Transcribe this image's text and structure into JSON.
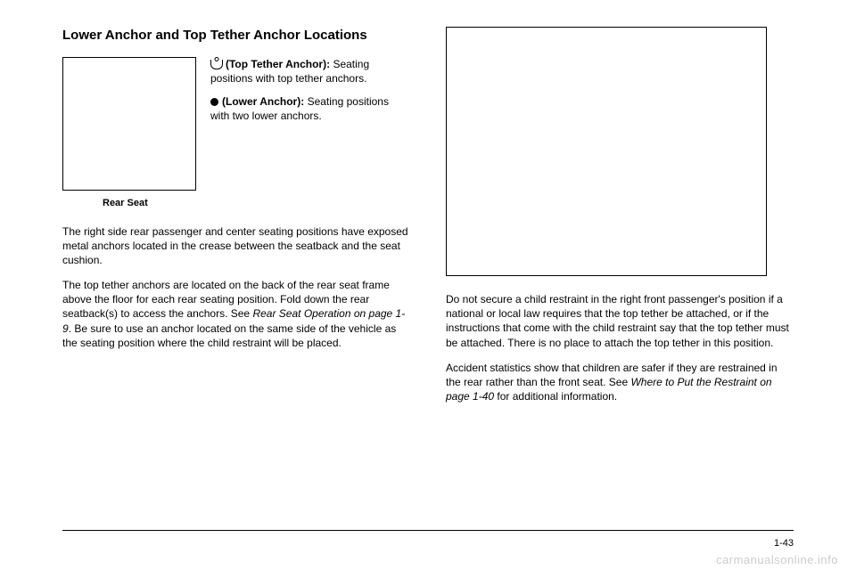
{
  "left": {
    "heading": "Lower Anchor and Top Tether Anchor Locations",
    "legend": {
      "top_tether_label": "(Top Tether Anchor):",
      "top_tether_desc": "Seating positions with top tether anchors.",
      "lower_anchor_label": "(Lower Anchor):",
      "lower_anchor_desc": "Seating positions with two lower anchors."
    },
    "caption": "Rear Seat",
    "para1": "The right side rear passenger and center seating positions have exposed metal anchors located in the crease between the seatback and the seat cushion.",
    "para2_a": "The top tether anchors are located on the back of the rear seat frame above the floor for each rear seating position. Fold down the rear seatback(s) to access the anchors. See ",
    "para2_link": "Rear Seat Operation on page 1-9",
    "para2_b": ". Be sure to use an anchor located on the same side of the vehicle as the seating position where the child restraint will be placed."
  },
  "right": {
    "para1": "Do not secure a child restraint in the right front passenger's position if a national or local law requires that the top tether be attached, or if the instructions that come with the child restraint say that the top tether must be attached. There is no place to attach the top tether in this position.",
    "para2_a": "Accident statistics show that children are safer if they are restrained in the rear rather than the front seat. See ",
    "para2_link": "Where to Put the Restraint on page 1-40",
    "para2_b": " for additional information."
  },
  "page_number": "1-43",
  "watermark": "carmanualsonline.info"
}
